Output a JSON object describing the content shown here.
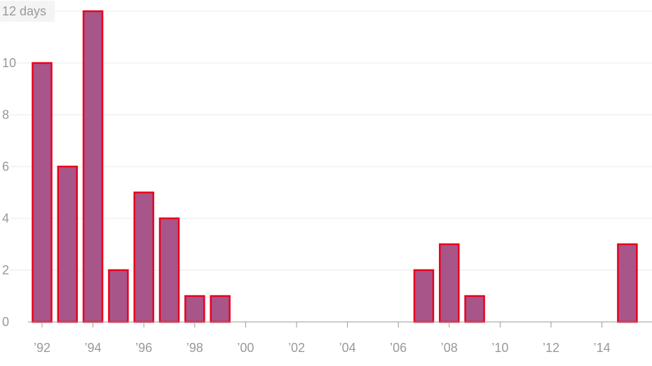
{
  "chart_data": {
    "type": "bar",
    "title": "",
    "xlabel": "",
    "ylabel": "",
    "y_unit": "days",
    "ylim": [
      0,
      12
    ],
    "y_ticks": [
      0,
      2,
      4,
      6,
      8,
      10,
      12
    ],
    "y_tick_labels": [
      "0",
      "2",
      "4",
      "6",
      "8",
      "10",
      "12 days"
    ],
    "xlim": [
      1991,
      2016
    ],
    "x_ticks": [
      1992,
      1994,
      1996,
      1998,
      2000,
      2002,
      2004,
      2006,
      2008,
      2010,
      2012,
      2014
    ],
    "x_tick_labels": [
      "’92",
      "’94",
      "’96",
      "’98",
      "’00",
      "’02",
      "’04",
      "’06",
      "’08",
      "’10",
      "’12",
      "’14"
    ],
    "categories": [
      1992,
      1993,
      1994,
      1995,
      1996,
      1997,
      1998,
      1999,
      2007,
      2008,
      2009,
      2015
    ],
    "values": [
      10,
      6,
      12,
      2,
      5,
      4,
      1,
      1,
      2,
      3,
      1,
      3
    ],
    "grid": true,
    "colors": {
      "bar_fill": "#a8558a",
      "bar_stroke": "#e8001c"
    }
  }
}
